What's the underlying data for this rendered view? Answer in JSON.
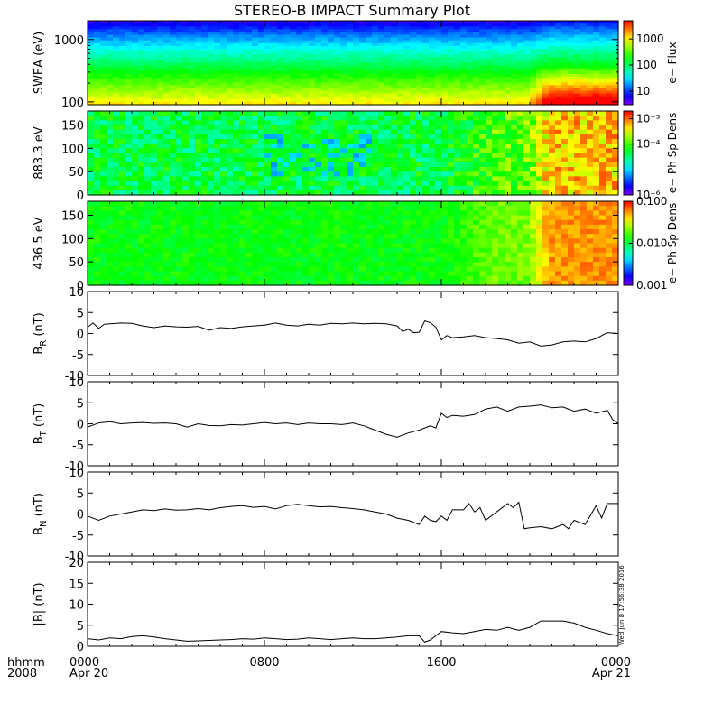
{
  "title": "STEREO-B IMPACT Summary Plot",
  "footer": {
    "row_label_1": "hhmm",
    "row_label_2": "2008",
    "ticks": [
      {
        "time": "0000",
        "date": "Apr 20",
        "hour": 0
      },
      {
        "time": "0800",
        "date": "",
        "hour": 8
      },
      {
        "time": "1600",
        "date": "",
        "hour": 16
      },
      {
        "time": "0000",
        "date": "Apr 21",
        "hour": 24
      }
    ]
  },
  "timestamp": "Wed Jun 8 17:56:38 2016",
  "colors": {
    "trace": "#000000",
    "background": "#ffffff"
  },
  "chart_data": [
    {
      "type": "heatmap",
      "ylabel": "SWEA (eV)",
      "ylog": true,
      "ylim": [
        90,
        2000
      ],
      "yticks": [
        {
          "v": 100,
          "label": "100"
        },
        {
          "v": 1000,
          "label": "1000"
        }
      ],
      "xlim": [
        0,
        24
      ],
      "colorbar": {
        "label": "e− Flux",
        "log": true,
        "range": [
          3,
          5000
        ],
        "ticks": [
          {
            "v": 10,
            "label": "10"
          },
          {
            "v": 100,
            "label": "100"
          },
          {
            "v": 1000,
            "label": "1000"
          }
        ]
      }
    },
    {
      "type": "heatmap",
      "ylabel": "883.3 eV",
      "ylim": [
        0,
        180
      ],
      "yticks": [
        {
          "v": 0,
          "label": "0"
        },
        {
          "v": 50,
          "label": "50"
        },
        {
          "v": 100,
          "label": "100"
        },
        {
          "v": 150,
          "label": "150"
        }
      ],
      "xlim": [
        0,
        24
      ],
      "colorbar": {
        "label": "e− Ph Sp Dens",
        "log": true,
        "range": [
          1e-06,
          0.002
        ],
        "ticks": [
          {
            "v": 1e-06,
            "label": "10⁻⁶"
          },
          {
            "v": 0.0001,
            "label": "10⁻⁴"
          },
          {
            "v": 0.001,
            "label": "10⁻³"
          }
        ]
      }
    },
    {
      "type": "heatmap",
      "ylabel": "436.5 eV",
      "ylim": [
        0,
        180
      ],
      "yticks": [
        {
          "v": 0,
          "label": "0"
        },
        {
          "v": 50,
          "label": "50"
        },
        {
          "v": 100,
          "label": "100"
        },
        {
          "v": 150,
          "label": "150"
        }
      ],
      "xlim": [
        0,
        24
      ],
      "colorbar": {
        "label": "e− Ph Sp Dens",
        "log": true,
        "range": [
          0.001,
          0.1
        ],
        "ticks": [
          {
            "v": 0.001,
            "label": "0.001"
          },
          {
            "v": 0.01,
            "label": "0.010"
          },
          {
            "v": 0.1,
            "label": "0.100"
          }
        ]
      }
    },
    {
      "type": "line",
      "ylabel": "B",
      "ylabel_sub": "R",
      "ylabel_unit": " (nT)",
      "ylim": [
        -10,
        10
      ],
      "yticks": [
        -10,
        -5,
        0,
        5,
        10
      ],
      "xlim": [
        0,
        24
      ],
      "x": [
        0,
        0.25,
        0.5,
        0.75,
        1,
        1.5,
        2,
        2.5,
        3,
        3.5,
        4,
        4.5,
        5,
        5.5,
        6,
        6.5,
        7,
        7.5,
        8,
        8.5,
        9,
        9.5,
        10,
        10.5,
        11,
        11.5,
        12,
        12.5,
        13,
        13.5,
        14,
        14.25,
        14.5,
        14.75,
        15,
        15.25,
        15.5,
        15.75,
        16,
        16.25,
        16.5,
        17,
        17.5,
        18,
        18.5,
        19,
        19.5,
        20,
        20.5,
        21,
        21.5,
        22,
        22.5,
        23,
        23.5,
        24
      ],
      "y": [
        1.5,
        2.5,
        1.2,
        2.2,
        2.3,
        2.5,
        2.4,
        1.8,
        1.4,
        1.8,
        1.6,
        1.5,
        1.7,
        0.8,
        1.4,
        1.2,
        1.6,
        1.8,
        2.0,
        2.5,
        2.0,
        1.8,
        2.2,
        2.0,
        2.4,
        2.3,
        2.5,
        2.3,
        2.4,
        2.3,
        1.8,
        0.5,
        1.0,
        0.2,
        0.3,
        3.0,
        2.6,
        1.5,
        -1.5,
        -0.5,
        -1.0,
        -0.8,
        -0.5,
        -1.0,
        -1.2,
        -1.5,
        -2.3,
        -2.0,
        -3.0,
        -2.7,
        -2.0,
        -1.8,
        -2.0,
        -1.2,
        0.2,
        0.0
      ]
    },
    {
      "type": "line",
      "ylabel": "B",
      "ylabel_sub": "T",
      "ylabel_unit": " (nT)",
      "ylim": [
        -10,
        10
      ],
      "yticks": [
        -10,
        -5,
        0,
        5,
        10
      ],
      "xlim": [
        0,
        24
      ],
      "x": [
        0,
        0.5,
        1,
        1.5,
        2,
        2.5,
        3,
        3.5,
        4,
        4.5,
        5,
        5.5,
        6,
        6.5,
        7,
        7.5,
        8,
        8.5,
        9,
        9.5,
        10,
        10.5,
        11,
        11.5,
        12,
        12.5,
        13,
        13.5,
        14,
        14.5,
        15,
        15.5,
        15.75,
        16,
        16.25,
        16.5,
        17,
        17.5,
        18,
        18.5,
        19,
        19.5,
        20,
        20.5,
        21,
        21.5,
        22,
        22.5,
        23,
        23.5,
        23.75,
        24
      ],
      "y": [
        -0.8,
        0.2,
        0.5,
        0.0,
        0.2,
        0.3,
        0.1,
        0.2,
        0.0,
        -0.8,
        0.0,
        -0.4,
        -0.5,
        -0.2,
        -0.3,
        0.0,
        0.3,
        0.0,
        0.2,
        -0.2,
        0.2,
        0.0,
        0.0,
        -0.2,
        0.2,
        -0.5,
        -1.5,
        -2.5,
        -3.2,
        -2.2,
        -1.5,
        -0.5,
        -1.0,
        2.5,
        1.5,
        2.0,
        1.8,
        2.2,
        3.5,
        4.0,
        3.0,
        4.0,
        4.2,
        4.5,
        3.8,
        4.0,
        3.0,
        3.5,
        2.5,
        3.2,
        1.0,
        0.0
      ]
    },
    {
      "type": "line",
      "ylabel": "B",
      "ylabel_sub": "N",
      "ylabel_unit": " (nT)",
      "ylim": [
        -10,
        10
      ],
      "yticks": [
        -10,
        -5,
        0,
        5,
        10
      ],
      "xlim": [
        0,
        24
      ],
      "x": [
        0,
        0.5,
        1,
        1.5,
        2,
        2.5,
        3,
        3.5,
        4,
        4.5,
        5,
        5.5,
        6,
        6.5,
        7,
        7.5,
        8,
        8.5,
        9,
        9.5,
        10,
        10.5,
        11,
        11.5,
        12,
        12.5,
        13,
        13.5,
        14,
        14.5,
        15,
        15.25,
        15.5,
        15.75,
        16,
        16.25,
        16.5,
        17,
        17.25,
        17.5,
        17.75,
        18,
        18.5,
        19,
        19.25,
        19.5,
        19.75,
        20,
        20.5,
        21,
        21.5,
        21.75,
        22,
        22.5,
        23,
        23.25,
        23.5,
        24
      ],
      "y": [
        -0.5,
        -1.5,
        -0.5,
        0.0,
        0.5,
        1.0,
        0.8,
        1.2,
        0.9,
        1.0,
        1.3,
        1.0,
        1.5,
        1.8,
        2.0,
        1.6,
        1.8,
        1.2,
        2.0,
        2.3,
        2.0,
        1.7,
        1.8,
        1.5,
        1.3,
        1.0,
        0.5,
        0.0,
        -1.0,
        -1.5,
        -2.5,
        -0.5,
        -1.5,
        -1.8,
        -0.5,
        -1.5,
        1.0,
        1.0,
        2.5,
        0.5,
        1.5,
        -1.5,
        0.5,
        2.5,
        1.5,
        2.8,
        -3.5,
        -3.3,
        -3.0,
        -3.5,
        -2.5,
        -3.5,
        -1.5,
        -2.5,
        2.0,
        -1.0,
        2.5,
        2.5
      ]
    },
    {
      "type": "line",
      "ylabel": "|B| (nT)",
      "ylim": [
        0,
        20
      ],
      "yticks": [
        0,
        5,
        10,
        15,
        20
      ],
      "xlim": [
        0,
        24
      ],
      "x": [
        0,
        0.5,
        1,
        1.5,
        2,
        2.5,
        3,
        3.5,
        4,
        4.5,
        5,
        5.5,
        6,
        6.5,
        7,
        7.5,
        8,
        8.5,
        9,
        9.5,
        10,
        10.5,
        11,
        11.5,
        12,
        12.5,
        13,
        13.5,
        14,
        14.5,
        15,
        15.25,
        15.5,
        15.75,
        16,
        16.5,
        17,
        17.5,
        18,
        18.5,
        19,
        19.5,
        20,
        20.5,
        21,
        21.5,
        22,
        22.5,
        23,
        23.5,
        24
      ],
      "y": [
        1.8,
        1.5,
        2.0,
        1.8,
        2.3,
        2.5,
        2.2,
        1.8,
        1.5,
        1.2,
        1.3,
        1.4,
        1.5,
        1.6,
        1.8,
        1.7,
        2.0,
        1.8,
        1.6,
        1.7,
        2.0,
        1.8,
        1.6,
        1.8,
        2.0,
        1.8,
        1.8,
        2.0,
        2.2,
        2.5,
        2.5,
        1.0,
        1.5,
        2.5,
        3.5,
        3.2,
        3.0,
        3.5,
        4.0,
        3.8,
        4.5,
        3.8,
        4.5,
        6.0,
        6.0,
        6.0,
        5.5,
        4.5,
        3.8,
        3.0,
        2.5
      ]
    }
  ]
}
